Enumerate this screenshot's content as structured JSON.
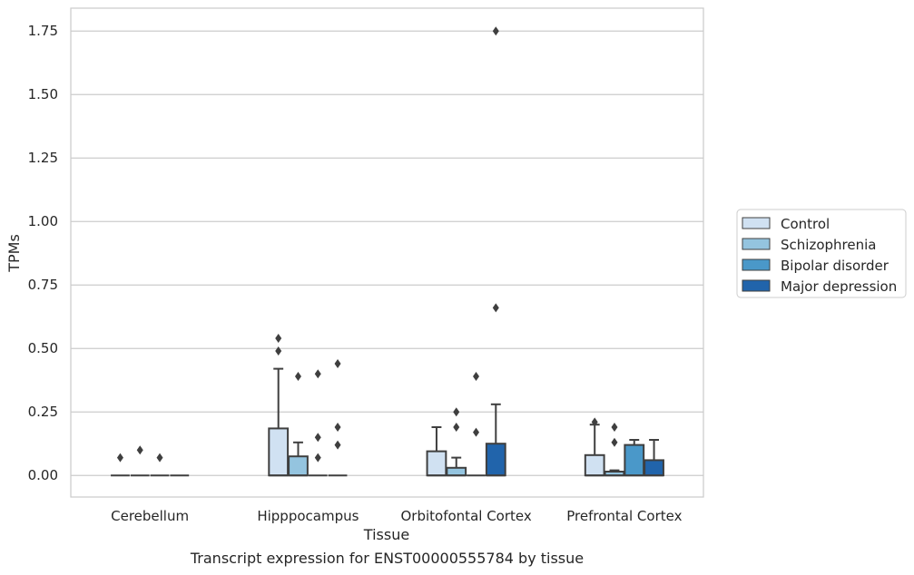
{
  "chart_data": {
    "type": "boxplot",
    "xlabel": "Tissue",
    "ylabel": "TPMs",
    "caption": "Transcript expression for ENST00000555784 by tissue",
    "categories": [
      "Cerebellum",
      "Hipppocampus",
      "Orbitofontal Cortex",
      "Prefrontal Cortex"
    ],
    "ylim": [
      -0.085,
      1.84
    ],
    "yticks": [
      0.0,
      0.25,
      0.5,
      0.75,
      1.0,
      1.25,
      1.5,
      1.75
    ],
    "ytick_labels": [
      "0.00",
      "0.25",
      "0.50",
      "0.75",
      "1.00",
      "1.25",
      "1.50",
      "1.75"
    ],
    "grid": true,
    "legend_position": "right",
    "series": [
      {
        "name": "Control",
        "color": "#d0e1f2",
        "boxes": [
          {
            "q1": 0,
            "median": 0,
            "q3": 0,
            "whisker_low": 0,
            "whisker_high": 0,
            "outliers": [
              0.07
            ]
          },
          {
            "q1": 0,
            "median": 0,
            "q3": 0.185,
            "whisker_low": 0,
            "whisker_high": 0.42,
            "outliers": [
              0.49,
              0.54
            ]
          },
          {
            "q1": 0,
            "median": 0,
            "q3": 0.095,
            "whisker_low": 0,
            "whisker_high": 0.19,
            "outliers": []
          },
          {
            "q1": 0,
            "median": 0,
            "q3": 0.08,
            "whisker_low": 0,
            "whisker_high": 0.2,
            "outliers": [
              0.21
            ]
          }
        ]
      },
      {
        "name": "Schizophrenia",
        "color": "#94c4df",
        "boxes": [
          {
            "q1": 0,
            "median": 0,
            "q3": 0,
            "whisker_low": 0,
            "whisker_high": 0,
            "outliers": [
              0.1
            ]
          },
          {
            "q1": 0,
            "median": 0,
            "q3": 0.075,
            "whisker_low": 0,
            "whisker_high": 0.13,
            "outliers": [
              0.39
            ]
          },
          {
            "q1": 0,
            "median": 0,
            "q3": 0.03,
            "whisker_low": 0,
            "whisker_high": 0.07,
            "outliers": [
              0.19,
              0.25
            ]
          },
          {
            "q1": 0,
            "median": 0,
            "q3": 0.015,
            "whisker_low": 0,
            "whisker_high": 0.02,
            "outliers": [
              0.13,
              0.19
            ]
          }
        ]
      },
      {
        "name": "Bipolar disorder",
        "color": "#4a98c9",
        "boxes": [
          {
            "q1": 0,
            "median": 0,
            "q3": 0,
            "whisker_low": 0,
            "whisker_high": 0,
            "outliers": [
              0.07
            ]
          },
          {
            "q1": 0,
            "median": 0,
            "q3": 0,
            "whisker_low": 0,
            "whisker_high": 0,
            "outliers": [
              0.07,
              0.15,
              0.4
            ]
          },
          {
            "q1": 0,
            "median": 0,
            "q3": 0,
            "whisker_low": 0,
            "whisker_high": 0,
            "outliers": [
              0.17,
              0.39
            ]
          },
          {
            "q1": 0,
            "median": 0,
            "q3": 0.12,
            "whisker_low": 0,
            "whisker_high": 0.14,
            "outliers": []
          }
        ]
      },
      {
        "name": "Major depression",
        "color": "#2164ab",
        "boxes": [
          {
            "q1": 0,
            "median": 0,
            "q3": 0,
            "whisker_low": 0,
            "whisker_high": 0,
            "outliers": []
          },
          {
            "q1": 0,
            "median": 0,
            "q3": 0,
            "whisker_low": 0,
            "whisker_high": 0,
            "outliers": [
              0.12,
              0.19,
              0.44
            ]
          },
          {
            "q1": 0,
            "median": 0,
            "q3": 0.125,
            "whisker_low": 0,
            "whisker_high": 0.28,
            "outliers": [
              0.66,
              1.75
            ]
          },
          {
            "q1": 0,
            "median": 0,
            "q3": 0.06,
            "whisker_low": 0,
            "whisker_high": 0.14,
            "outliers": []
          }
        ]
      }
    ]
  }
}
